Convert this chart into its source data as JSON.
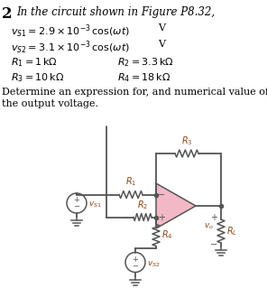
{
  "bg_color": "#ffffff",
  "text_color": "#000000",
  "circuit_color": "#555555",
  "opamp_fill": "#f2b8c6",
  "label_color": "#8B4513",
  "title_num": "2",
  "title_text": "In the circuit shown in Figure P8.32,",
  "line1_math": "$v_{S1} = 2.9 \\times 10^{-3}\\,\\cos(\\omega t)$",
  "line1_unit": "V",
  "line2_math": "$v_{S2} = 3.1 \\times 10^{-3}\\,\\cos(\\omega t)$",
  "line2_unit": "V",
  "line3a": "$R_1 = 1\\,\\mathrm{k\\Omega}$",
  "line3b": "$R_2 = 3.3\\,\\mathrm{k\\Omega}$",
  "line4a": "$R_3 = 10\\,\\mathrm{k\\Omega}$",
  "line4b": "$R_4 = 18\\,\\mathrm{k\\Omega}$",
  "desc1": "Determine an expression for, and numerical value of,",
  "desc2": "the output voltage."
}
